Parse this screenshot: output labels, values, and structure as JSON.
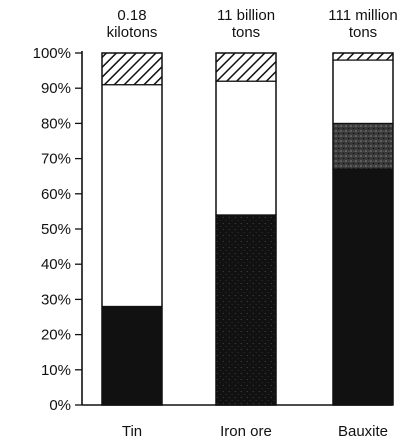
{
  "chart_data": {
    "type": "bar",
    "stacked": true,
    "categories": [
      "Tin",
      "Iron ore",
      "Bauxite"
    ],
    "top_labels": [
      [
        "0.18",
        "kilotons"
      ],
      [
        "11 billion",
        "tons"
      ],
      [
        "111 million",
        "tons"
      ]
    ],
    "yticks": [
      "0%",
      "10%",
      "20%",
      "30%",
      "40%",
      "50%",
      "60%",
      "70%",
      "80%",
      "90%",
      "100%"
    ],
    "ylim": [
      0,
      100
    ],
    "grid": false,
    "legend": "none",
    "segments_by_category": [
      [
        {
          "value": 28,
          "fill": "solid-black"
        },
        {
          "value": 63,
          "fill": "white"
        },
        {
          "value": 9,
          "fill": "hatched"
        }
      ],
      [
        {
          "value": 54,
          "fill": "stippled-black"
        },
        {
          "value": 38,
          "fill": "white"
        },
        {
          "value": 8,
          "fill": "hatched"
        }
      ],
      [
        {
          "value": 67,
          "fill": "solid-black"
        },
        {
          "value": 13,
          "fill": "dark-stipple"
        },
        {
          "value": 18,
          "fill": "white"
        },
        {
          "value": 2,
          "fill": "hatched"
        }
      ]
    ],
    "colors": {
      "solid-black": "#111111",
      "stippled-black": "#1a1a1a",
      "dark-stipple": "#4a4a4a",
      "white": "#ffffff",
      "hatch-stroke": "#111111"
    }
  }
}
